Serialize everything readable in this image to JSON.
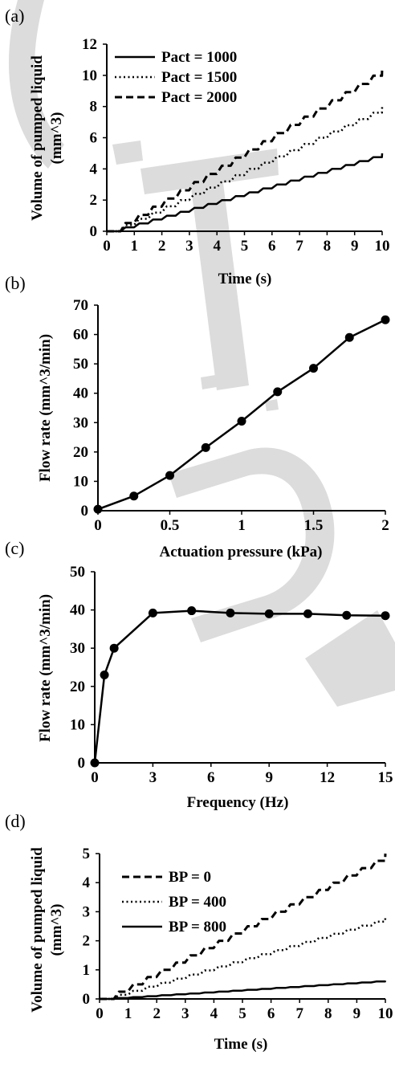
{
  "chart_data": [
    {
      "id": "a",
      "panel_label": "(a)",
      "type": "line",
      "xlabel": "Time (s)",
      "ylabel": [
        "Volume of pumped liquid",
        "(mm^3)"
      ],
      "xlim": [
        0,
        10
      ],
      "ylim": [
        0,
        12
      ],
      "xticks": [
        0,
        1,
        2,
        3,
        4,
        5,
        6,
        7,
        8,
        9,
        10
      ],
      "yticks": [
        0,
        2,
        4,
        6,
        8,
        10,
        12
      ],
      "grid": false,
      "legend_position": "top-left",
      "series": [
        {
          "name": "Pact = 1000",
          "style": "solid",
          "staircase": {
            "start": 0.5,
            "period": 1.0,
            "step": 0.5,
            "end": 10
          }
        },
        {
          "name": "Pact = 1500",
          "style": "dotted",
          "staircase": {
            "start": 0.5,
            "period": 1.0,
            "step": 0.8,
            "end": 10
          }
        },
        {
          "name": "Pact = 2000",
          "style": "dashed",
          "staircase": {
            "start": 0.5,
            "period": 1.0,
            "step": 1.05,
            "end": 10
          }
        }
      ]
    },
    {
      "id": "b",
      "panel_label": "(b)",
      "type": "line",
      "xlabel": "Actuation pressure (kPa)",
      "ylabel": [
        "Flow rate (mm^3/min)"
      ],
      "xlim": [
        0,
        2
      ],
      "ylim": [
        0,
        70
      ],
      "xticks": [
        0,
        0.5,
        1,
        1.5,
        2
      ],
      "yticks": [
        0,
        10,
        20,
        30,
        40,
        50,
        60,
        70
      ],
      "grid": false,
      "markers": true,
      "series": [
        {
          "name": "",
          "x": [
            0,
            0.25,
            0.5,
            0.75,
            1.0,
            1.25,
            1.5,
            1.75,
            2.0
          ],
          "y": [
            0.5,
            5,
            12,
            21.5,
            30.5,
            40.5,
            48.5,
            59,
            65
          ]
        }
      ]
    },
    {
      "id": "c",
      "panel_label": "(c)",
      "type": "line",
      "xlabel": "Frequency (Hz)",
      "ylabel": [
        "Flow rate (mm^3/min)"
      ],
      "xlim": [
        0,
        15
      ],
      "ylim": [
        0,
        50
      ],
      "xticks": [
        0,
        3,
        6,
        9,
        12,
        15
      ],
      "yticks": [
        0,
        10,
        20,
        30,
        40,
        50
      ],
      "grid": false,
      "markers": true,
      "series": [
        {
          "name": "",
          "x": [
            0,
            0.5,
            1,
            3,
            5,
            7,
            9,
            11,
            13,
            15
          ],
          "y": [
            0,
            23,
            30,
            39.2,
            39.8,
            39.2,
            39,
            39,
            38.6,
            38.5
          ]
        }
      ]
    },
    {
      "id": "d",
      "panel_label": "(d)",
      "type": "line",
      "xlabel": "Time (s)",
      "ylabel": [
        "Volume of pumped liquid",
        "(mm^3)"
      ],
      "xlim": [
        0,
        10
      ],
      "ylim": [
        0,
        5
      ],
      "xticks": [
        0,
        1,
        2,
        3,
        4,
        5,
        6,
        7,
        8,
        9,
        10
      ],
      "yticks": [
        0,
        1,
        2,
        3,
        4,
        5
      ],
      "grid": false,
      "legend_position": "top-left",
      "series": [
        {
          "name": "BP = 0",
          "style": "dashed",
          "staircase": {
            "start": 0.5,
            "period": 1.0,
            "step": 0.5,
            "end": 10
          }
        },
        {
          "name": "BP = 400",
          "style": "dotted",
          "staircase": {
            "start": 0.5,
            "period": 1.0,
            "step": 0.28,
            "end": 10
          }
        },
        {
          "name": "BP = 800",
          "style": "solid",
          "staircase": {
            "start": 0.5,
            "period": 1.0,
            "step": 0.063,
            "end": 10
          }
        }
      ]
    }
  ]
}
